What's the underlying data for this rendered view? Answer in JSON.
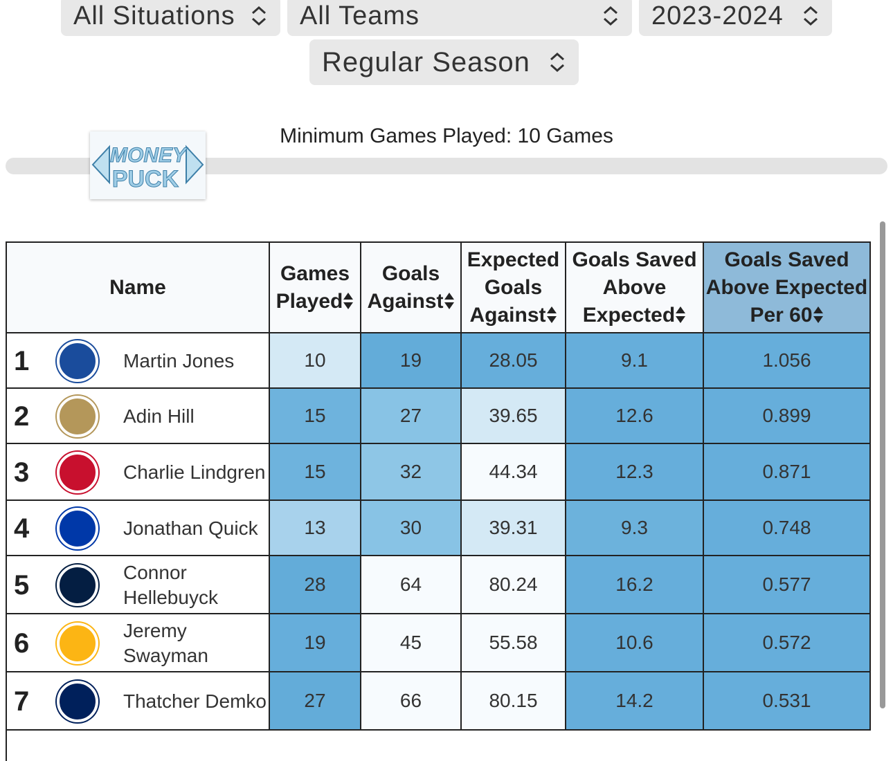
{
  "filters": [
    "All Situations",
    "All Teams",
    "2023-2024",
    "Regular Season"
  ],
  "slider": {
    "label": "Minimum Games Played: 10 Games"
  },
  "logo": [
    "MONEY",
    "PUCK"
  ],
  "table": {
    "columns": [
      "Name",
      "Games Played",
      "Goals Against",
      "Expected Goals Against",
      "Goals Saved Above Expected",
      "Goals Saved Above Expected Per 60"
    ],
    "rows": [
      {
        "rank": 1,
        "name": "Martin Jones",
        "cells": [
          10,
          19,
          28.05,
          9.1,
          1.056
        ],
        "colors": [
          "#d4e9f5",
          "#63acd9",
          "#66aedb",
          "#66aedb",
          "#66aedb"
        ]
      },
      {
        "rank": 2,
        "name": "Adin Hill",
        "cells": [
          15,
          27,
          39.65,
          12.6,
          0.899
        ],
        "colors": [
          "#6eb3dd",
          "#88c3e5",
          "#d4e9f5",
          "#66aedb",
          "#66aedb"
        ]
      },
      {
        "rank": 3,
        "name": "Charlie Lindgren",
        "cells": [
          15,
          32,
          44.34,
          12.3,
          0.871
        ],
        "colors": [
          "#6eb3dd",
          "#8ec6e6",
          "#f7fbfe",
          "#66aedb",
          "#66aedb"
        ]
      },
      {
        "rank": 4,
        "name": "Jonathan Quick",
        "cells": [
          13,
          30,
          39.31,
          9.3,
          0.748
        ],
        "colors": [
          "#a8d2ec",
          "#88c3e5",
          "#d4e9f5",
          "#6cb2dc",
          "#66aedb"
        ]
      },
      {
        "rank": 5,
        "name": "Connor Hellebuyck",
        "cells": [
          28,
          64,
          80.24,
          16.2,
          0.577
        ],
        "colors": [
          "#63acd9",
          "#f7fbfe",
          "#f7fbfe",
          "#66aedb",
          "#66aedb"
        ]
      },
      {
        "rank": 6,
        "name": "Jeremy Swayman",
        "cells": [
          19,
          45,
          55.58,
          10.6,
          0.572
        ],
        "colors": [
          "#66aedb",
          "#f7fbfe",
          "#f7fbfe",
          "#66aedb",
          "#66aedb"
        ]
      },
      {
        "rank": 7,
        "name": "Thatcher Demko",
        "cells": [
          27,
          66,
          80.15,
          14.2,
          0.531
        ],
        "colors": [
          "#63acd9",
          "#f7fbfe",
          "#f7fbfe",
          "#66aedb",
          "#66aedb"
        ]
      }
    ]
  }
}
